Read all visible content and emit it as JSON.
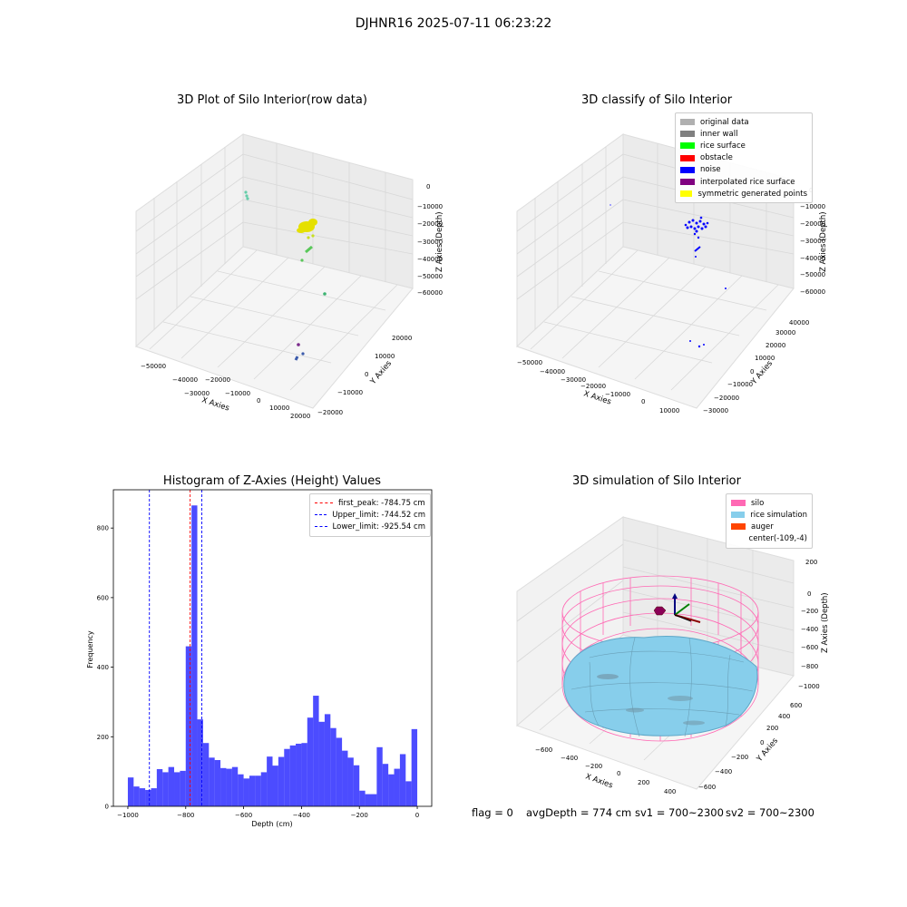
{
  "suptitle": "DJHNR16 2025-07-11 06:23:22",
  "panels": {
    "raw": {
      "title": "3D Plot of Silo Interior(row data)",
      "xlabel": "X Axies",
      "ylabel": "Y Axies",
      "zlabel": "Z Axies (Depth)",
      "xticks": [
        "−50000",
        "−40000",
        "−30000",
        "−20000",
        "−10000",
        "0",
        "10000",
        "20000"
      ],
      "yticks": [
        "−20000",
        "−10000",
        "0",
        "10000",
        "20000"
      ],
      "zticks": [
        "0",
        "−10000",
        "−20000",
        "−30000",
        "−40000",
        "−50000",
        "−60000"
      ]
    },
    "classify": {
      "title": "3D classify of Silo Interior",
      "xlabel": "X Axies",
      "ylabel": "Y Axies",
      "zlabel": "Z Axies (Depth)",
      "xticks": [
        "−50000",
        "−40000",
        "−30000",
        "−20000",
        "−10000",
        "0",
        "10000"
      ],
      "yticks": [
        "−30000",
        "−20000",
        "−10000",
        "0",
        "10000",
        "20000",
        "30000",
        "40000"
      ],
      "zticks": [
        "0",
        "−10000",
        "−20000",
        "−30000",
        "−40000",
        "−50000",
        "−60000"
      ],
      "legend": [
        {
          "label": "original data",
          "color": "#b0b0b0"
        },
        {
          "label": "inner wall",
          "color": "#808080"
        },
        {
          "label": "rice surface",
          "color": "#00ff00"
        },
        {
          "label": "obstacle",
          "color": "#ff0000"
        },
        {
          "label": "noise",
          "color": "#0000ff"
        },
        {
          "label": "interpolated rice surface",
          "color": "#800080"
        },
        {
          "label": "symmetric generated points",
          "color": "#ffff00"
        }
      ]
    },
    "simulation": {
      "title": "3D simulation of Silo Interior",
      "xlabel": "X Axies",
      "ylabel": "Y Axies",
      "zlabel": "Z Axies (Depth)",
      "xticks": [
        "−600",
        "−400",
        "−200",
        "0",
        "200",
        "400"
      ],
      "yticks": [
        "−600",
        "−400",
        "−200",
        "0",
        "200",
        "400",
        "600"
      ],
      "zticks": [
        "200",
        "0",
        "−200",
        "−400",
        "−600",
        "−800",
        "−1000"
      ],
      "legend": [
        {
          "label": "silo",
          "color": "#ff69b4"
        },
        {
          "label": "rice simulation",
          "color": "#87ceeb"
        },
        {
          "label": "auger",
          "color": "#ff4500"
        },
        {
          "label": "center(-109,-4)",
          "color": ""
        }
      ]
    }
  },
  "footer": {
    "flag": "flag = 0",
    "avg": "avgDepth = 774 cm",
    "sv1": "sv1 = 700~2300",
    "sv2": "sv2 = 700~2300"
  },
  "chart_data": {
    "type": "bar",
    "title": "Histogram of Z-Axies (Height) Values",
    "xlabel": "Depth (cm)",
    "ylabel": "Frequency",
    "xlim": [
      -1050,
      50
    ],
    "ylim": [
      0,
      910
    ],
    "xticks": [
      -1000,
      -800,
      -600,
      -400,
      -200,
      0
    ],
    "yticks": [
      0,
      200,
      400,
      600,
      800
    ],
    "bar_color": "#0000ff",
    "bins": {
      "start": -1000,
      "width": 20,
      "values": [
        83,
        57,
        52,
        47,
        52,
        107,
        98,
        113,
        98,
        102,
        460,
        865,
        250,
        182,
        140,
        133,
        110,
        108,
        113,
        92,
        80,
        88,
        88,
        98,
        143,
        117,
        142,
        165,
        175,
        180,
        182,
        255,
        318,
        243,
        265,
        225,
        197,
        160,
        140,
        118,
        45,
        35,
        35,
        170,
        122,
        92,
        108,
        150,
        72,
        222
      ]
    },
    "vlines": [
      {
        "x": -784.75,
        "color": "#ff0000",
        "label": "first_peak: -784.75 cm"
      },
      {
        "x": -744.52,
        "color": "#0000ff",
        "label": "Upper_limit: -744.52 cm"
      },
      {
        "x": -925.54,
        "color": "#0000ff",
        "label": "Lower_limit: -925.54 cm"
      }
    ]
  }
}
